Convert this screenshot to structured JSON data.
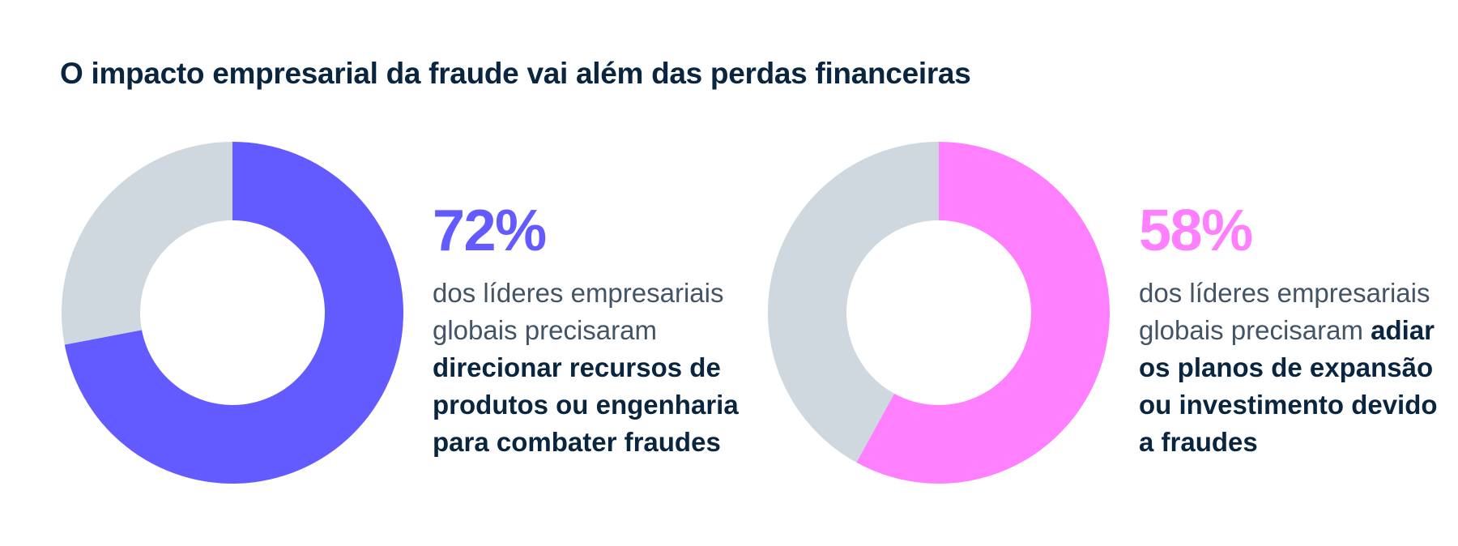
{
  "title": "O impacto empresarial da fraude vai além das perdas financeiras",
  "colors": {
    "title": "#0a2540",
    "body_text": "#425466",
    "emphasis_text": "#0a2540",
    "track": "#cfd7df"
  },
  "chart_data": [
    {
      "type": "pie",
      "style": "donut",
      "slices": [
        {
          "value": 72,
          "color": "#635bff"
        },
        {
          "value": 28,
          "color": "#cfd7df"
        }
      ],
      "stat": {
        "percent": "72%",
        "color": "#635bff",
        "text": "dos líderes empresariais globais precisaram",
        "emphasis": "direcionar recursos de produtos ou engenharia para combater fraudes"
      }
    },
    {
      "type": "pie",
      "style": "donut",
      "slices": [
        {
          "value": 58,
          "color": "#ff80ff"
        },
        {
          "value": 42,
          "color": "#cfd7df"
        }
      ],
      "stat": {
        "percent": "58%",
        "color": "#ff80ff",
        "text": "dos líderes empresariais globais precisaram",
        "emphasis": "adiar os planos de expansão ou investimento devido a fraudes"
      }
    }
  ]
}
